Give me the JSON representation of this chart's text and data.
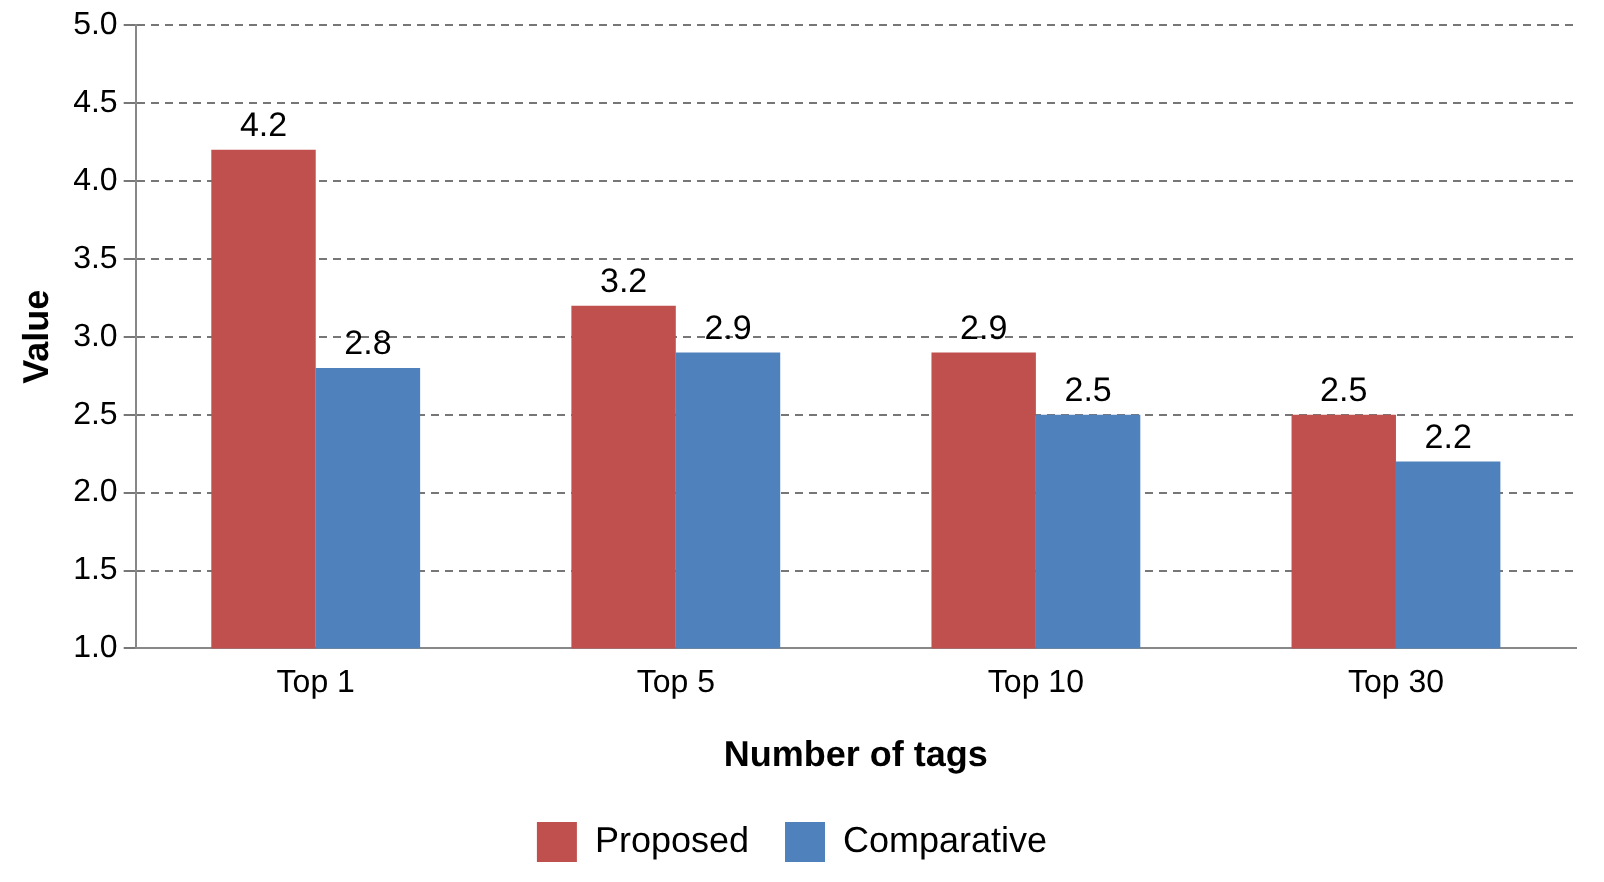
{
  "chart_data": {
    "type": "bar",
    "xlabel": "Number of tags",
    "ylabel": "Value",
    "categories": [
      "Top 1",
      "Top 5",
      "Top 10",
      "Top 30"
    ],
    "series": [
      {
        "name": "Proposed",
        "color": "#c0504d",
        "values": [
          4.2,
          3.2,
          2.9,
          2.5
        ]
      },
      {
        "name": "Comparative",
        "color": "#4f81bd",
        "values": [
          2.8,
          2.9,
          2.5,
          2.2
        ]
      }
    ],
    "ylim": [
      1.0,
      5.0
    ],
    "yticks": [
      {
        "value": 1,
        "label": "1.0"
      },
      {
        "value": 1.5,
        "label": "1.5"
      },
      {
        "value": 2,
        "label": "2.0"
      },
      {
        "value": 2.5,
        "label": "2.5"
      },
      {
        "value": 3,
        "label": "3.0"
      },
      {
        "value": 3.5,
        "label": "3.5"
      },
      {
        "value": 4,
        "label": "4.0"
      },
      {
        "value": 4.5,
        "label": "4.5"
      },
      {
        "value": 5,
        "label": "5.0"
      }
    ],
    "grid": "y",
    "legend": "bottom",
    "data_labels": true
  }
}
